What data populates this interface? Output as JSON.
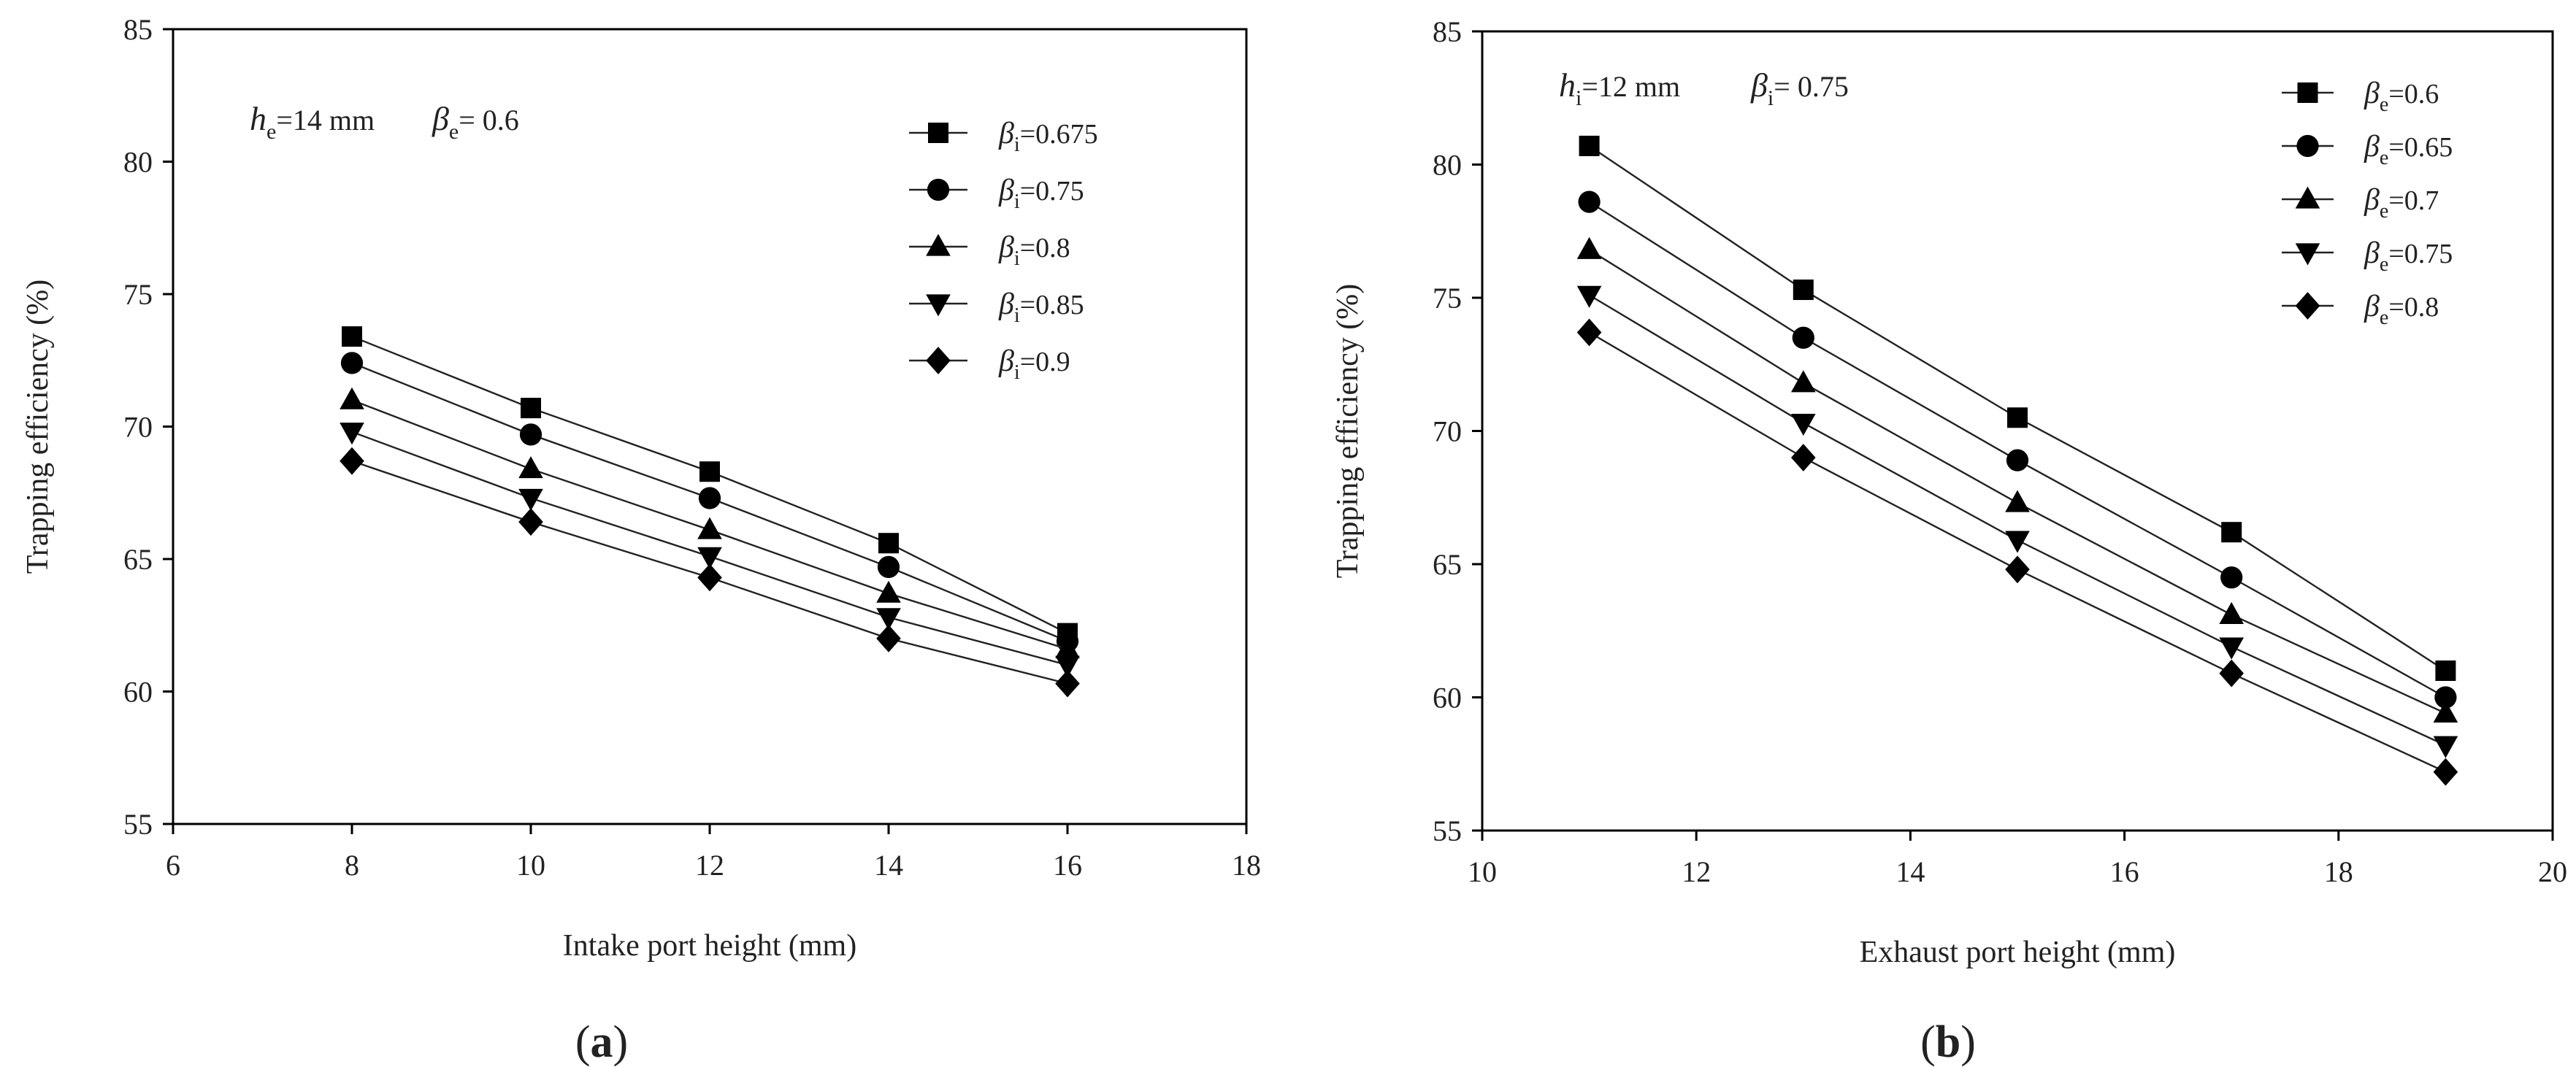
{
  "chart_data": [
    {
      "type": "line",
      "panel_label": {
        "open": "(",
        "letter": "a",
        "close": ")"
      },
      "condition": [
        {
          "sym": "h",
          "sub": "e",
          "rest": "=14 mm"
        },
        {
          "sym": "β",
          "sub": "e",
          "rest": "= 0.6"
        }
      ],
      "xlabel": "Intake port height (mm)",
      "ylabel": "Trapping efficiency (%)",
      "xlim": [
        6,
        18
      ],
      "ylim": [
        55,
        85
      ],
      "xticks": [
        6,
        8,
        10,
        12,
        14,
        16,
        18
      ],
      "yticks": [
        55,
        60,
        65,
        70,
        75,
        80,
        85
      ],
      "x": [
        8,
        10,
        12,
        14,
        16
      ],
      "legend_position": "top-right",
      "grid": false,
      "series": [
        {
          "sym": "β",
          "sub": "i",
          "value": "=0.675",
          "marker": "square",
          "values": [
            73.4,
            70.7,
            68.3,
            65.6,
            62.2
          ]
        },
        {
          "sym": "β",
          "sub": "i",
          "value": "=0.75",
          "marker": "circle",
          "values": [
            72.4,
            69.7,
            67.3,
            64.7,
            61.9
          ]
        },
        {
          "sym": "β",
          "sub": "i",
          "value": "=0.8",
          "marker": "triangle-up",
          "values": [
            71.0,
            68.4,
            66.1,
            63.7,
            61.6
          ]
        },
        {
          "sym": "β",
          "sub": "i",
          "value": "=0.85",
          "marker": "triangle-down",
          "values": [
            69.8,
            67.3,
            65.1,
            62.8,
            61.0
          ]
        },
        {
          "sym": "β",
          "sub": "i",
          "value": "=0.9",
          "marker": "diamond",
          "values": [
            68.7,
            66.4,
            64.3,
            62.0,
            60.3
          ]
        }
      ]
    },
    {
      "type": "line",
      "panel_label": {
        "open": "(",
        "letter": "b",
        "close": ")"
      },
      "condition": [
        {
          "sym": "h",
          "sub": "i",
          "rest": "=12 mm"
        },
        {
          "sym": "β",
          "sub": "i",
          "rest": "= 0.75"
        }
      ],
      "xlabel": "Exhaust port height (mm)",
      "ylabel": "Trapping efficiency (%)",
      "xlim": [
        10,
        20
      ],
      "ylim": [
        55,
        85
      ],
      "xticks": [
        10,
        12,
        14,
        16,
        18,
        20
      ],
      "yticks": [
        55,
        60,
        65,
        70,
        75,
        80,
        85
      ],
      "x": [
        11,
        13,
        15,
        17,
        19
      ],
      "legend_position": "top-right",
      "grid": false,
      "series": [
        {
          "sym": "β",
          "sub": "e",
          "value": "=0.6",
          "marker": "square",
          "values": [
            80.7,
            75.3,
            70.5,
            66.2,
            61.0
          ]
        },
        {
          "sym": "β",
          "sub": "e",
          "value": "=0.65",
          "marker": "circle",
          "values": [
            78.6,
            73.5,
            68.9,
            64.5,
            60.0
          ]
        },
        {
          "sym": "β",
          "sub": "e",
          "value": "=0.7",
          "marker": "triangle-up",
          "values": [
            76.8,
            71.8,
            67.3,
            63.1,
            59.4
          ]
        },
        {
          "sym": "β",
          "sub": "e",
          "value": "=0.75",
          "marker": "triangle-down",
          "values": [
            75.1,
            70.3,
            65.9,
            61.9,
            58.2
          ]
        },
        {
          "sym": "β",
          "sub": "e",
          "value": "=0.8",
          "marker": "diamond",
          "values": [
            73.7,
            69.0,
            64.8,
            60.9,
            57.2
          ]
        }
      ]
    }
  ]
}
